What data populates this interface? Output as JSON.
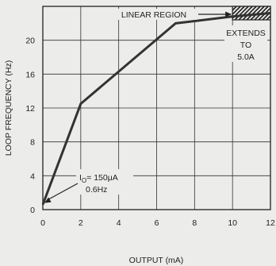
{
  "chart_data": {
    "type": "line",
    "title": "",
    "xlabel": "OUTPUT (mA)",
    "ylabel": "LOOP FREQUENCY (Hz)",
    "xlim": [
      0,
      12
    ],
    "ylim": [
      0,
      24
    ],
    "grid": true,
    "x_ticks": [
      "0",
      "2",
      "4",
      "6",
      "8",
      "10",
      "12"
    ],
    "y_ticks": [
      "0",
      "4",
      "8",
      "12",
      "16",
      "20"
    ],
    "series": [
      {
        "x": [
          0,
          2,
          7,
          10,
          12
        ],
        "y": [
          0.6,
          12.5,
          22,
          22.8,
          23.2
        ]
      }
    ],
    "shaded_region": {
      "label": "LINEAR REGION",
      "x_start": 10,
      "x_end": 12
    },
    "annotations": {
      "linear_region": "LINEAR REGION",
      "extends_line1": "EXTENDS",
      "extends_line2": "TO",
      "extends_line3": "5.0A",
      "origin_prefix": "I",
      "origin_sub": "O",
      "origin_current": "= 150μA",
      "origin_freq": "0.6Hz"
    },
    "colors": {
      "line": "#333333",
      "grid": "#333333",
      "background": "#ececea"
    }
  }
}
